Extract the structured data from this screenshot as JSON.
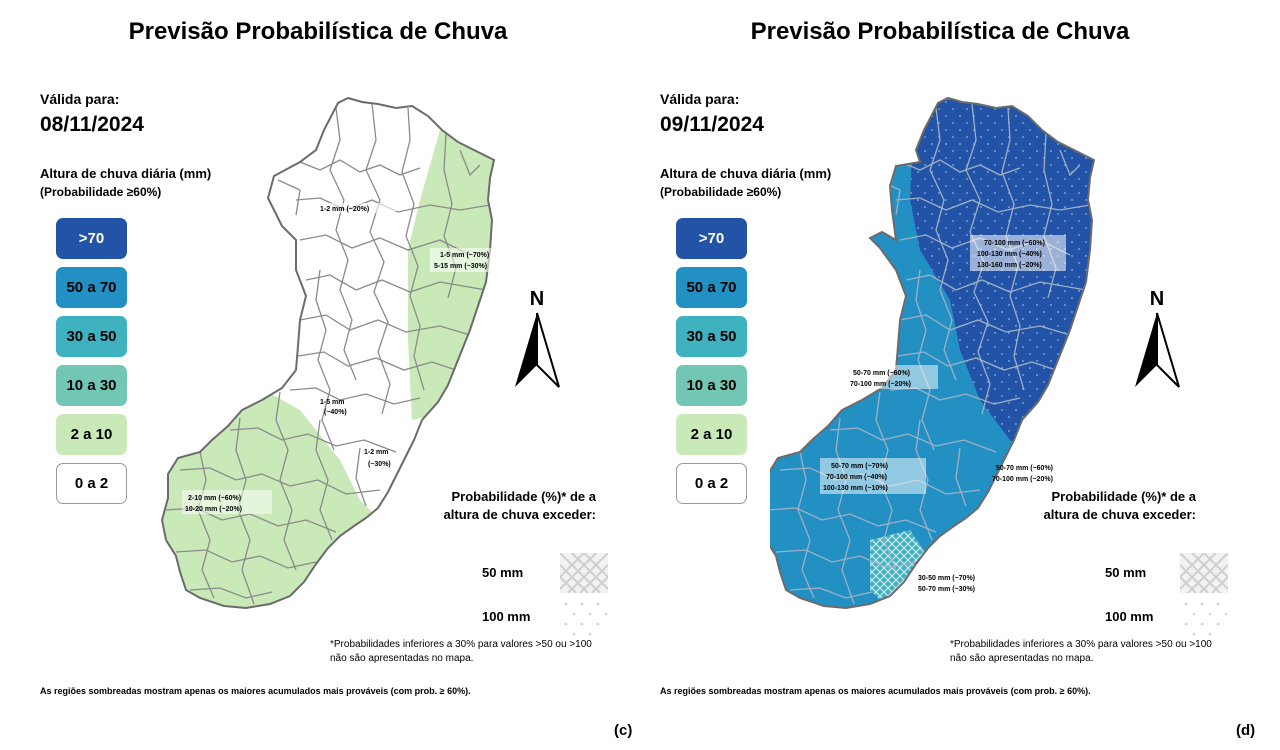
{
  "panels": [
    {
      "title": "Previsão Probabilística de Chuva",
      "valid_label": "Válida para:",
      "valid_date": "08/11/2024",
      "rain_label": "Altura de chuva diária (mm)",
      "rain_sub": "(Probabilidade ≥60%)",
      "legend": [
        ">70",
        "50 a 70",
        "30 a 50",
        "10 a 30",
        "2 a 10",
        "0 a 2"
      ],
      "map_labels": [
        [
          "1-2 mm (~20%)"
        ],
        [
          "1-5 mm (~70%)",
          "5-15 mm (~30%)"
        ],
        [
          "1-5 mm",
          "(~40%)"
        ],
        [
          "1-2 mm",
          "(~30%)"
        ],
        [
          "2-10 mm (~60%)",
          "10-20 mm (~20%)"
        ]
      ],
      "north": "N",
      "prob_title": "Probabilidade (%)* de a altura de chuva exceder:",
      "threshold_50": "50 mm",
      "threshold_100": "100 mm",
      "footnote": "*Probabilidades inferiores a 30% para valores >50 ou >100 não são apresentadas no mapa.",
      "shaded_note": "As regiões sombreadas mostram apenas os maiores acumulados mais prováveis (com prob. ≥ 60%).",
      "tag": "(c)"
    },
    {
      "title": "Previsão Probabilística de Chuva",
      "valid_label": "Válida para:",
      "valid_date": "09/11/2024",
      "rain_label": "Altura de chuva diária (mm)",
      "rain_sub": "(Probabilidade ≥60%)",
      "legend": [
        ">70",
        "50 a 70",
        "30 a 50",
        "10 a 30",
        "2 a 10",
        "0 a 2"
      ],
      "map_labels": [
        [
          "70-100 mm (~60%)",
          "100-130 mm (~40%)",
          "130-160 mm (~20%)"
        ],
        [
          "50-70 mm (~60%)",
          "70-100 mm (~20%)"
        ],
        [
          "50-70 mm (~70%)",
          "70-100 mm (~40%)",
          "100-130 mm (~10%)"
        ],
        [
          "50-70 mm (~60%)",
          "70-100 mm (~20%)"
        ],
        [
          "30-50 mm (~70%)",
          "50-70 mm (~30%)"
        ]
      ],
      "north": "N",
      "prob_title": "Probabilidade (%)* de a altura de chuva exceder:",
      "threshold_50": "50 mm",
      "threshold_100": "100 mm",
      "footnote": "*Probabilidades inferiores a 30% para valores >50 ou >100 não são apresentadas no mapa.",
      "shaded_note": "As regiões sombreadas mostram apenas os maiores acumulados mais prováveis (com prob. ≥ 60%).",
      "tag": "(d)"
    }
  ],
  "colors": {
    "gt70": "#2253a6",
    "c50_70": "#2390c4",
    "c30_50": "#3fb2bf",
    "c10_30": "#72c7b4",
    "c2_10": "#c9eab8",
    "c0_2": "#ffffff",
    "outline": "#888888"
  }
}
